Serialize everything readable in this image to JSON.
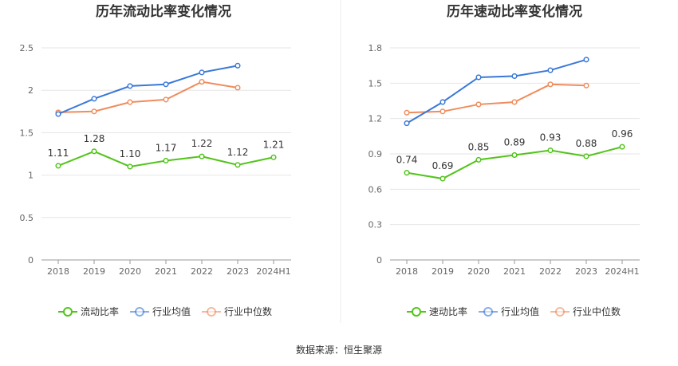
{
  "source_text": "数据来源：恒生聚源",
  "chart_data": [
    {
      "type": "line",
      "title": "历年流动比率变化情况",
      "categories": [
        "2018",
        "2019",
        "2020",
        "2021",
        "2022",
        "2023",
        "2024H1"
      ],
      "ylim": [
        0,
        2.5
      ],
      "yticks": [
        0,
        0.5,
        1,
        1.5,
        2,
        2.5
      ],
      "ytick_labels": [
        "0",
        "0.5",
        "1",
        "1.5",
        "2",
        "2.5"
      ],
      "grid": true,
      "legend_position": "bottom",
      "series": [
        {
          "name": "流动比率",
          "color": "#52c41a",
          "values": [
            1.11,
            1.28,
            1.1,
            1.17,
            1.22,
            1.12,
            1.21
          ],
          "labels": [
            "1.11",
            "1.28",
            "1.10",
            "1.17",
            "1.22",
            "1.12",
            "1.21"
          ]
        },
        {
          "name": "行业均值",
          "color": "#3a78d8",
          "values": [
            1.72,
            1.9,
            2.05,
            2.07,
            2.21,
            2.29,
            null
          ]
        },
        {
          "name": "行业中位数",
          "color": "#f08c5d",
          "values": [
            1.74,
            1.75,
            1.86,
            1.89,
            2.1,
            2.03,
            null
          ]
        }
      ]
    },
    {
      "type": "line",
      "title": "历年速动比率变化情况",
      "categories": [
        "2018",
        "2019",
        "2020",
        "2021",
        "2022",
        "2023",
        "2024H1"
      ],
      "ylim": [
        0,
        1.8
      ],
      "yticks": [
        0,
        0.3,
        0.6,
        0.9,
        1.2,
        1.5,
        1.8
      ],
      "ytick_labels": [
        "0",
        "0.3",
        "0.6",
        "0.9",
        "1.2",
        "1.5",
        "1.8"
      ],
      "grid": true,
      "legend_position": "bottom",
      "series": [
        {
          "name": "速动比率",
          "color": "#52c41a",
          "values": [
            0.74,
            0.69,
            0.85,
            0.89,
            0.93,
            0.88,
            0.96
          ],
          "labels": [
            "0.74",
            "0.69",
            "0.85",
            "0.89",
            "0.93",
            "0.88",
            "0.96"
          ]
        },
        {
          "name": "行业均值",
          "color": "#3a78d8",
          "values": [
            1.16,
            1.34,
            1.55,
            1.56,
            1.61,
            1.7,
            null
          ]
        },
        {
          "name": "行业中位数",
          "color": "#f08c5d",
          "values": [
            1.25,
            1.26,
            1.32,
            1.34,
            1.49,
            1.48,
            null
          ]
        }
      ]
    }
  ]
}
